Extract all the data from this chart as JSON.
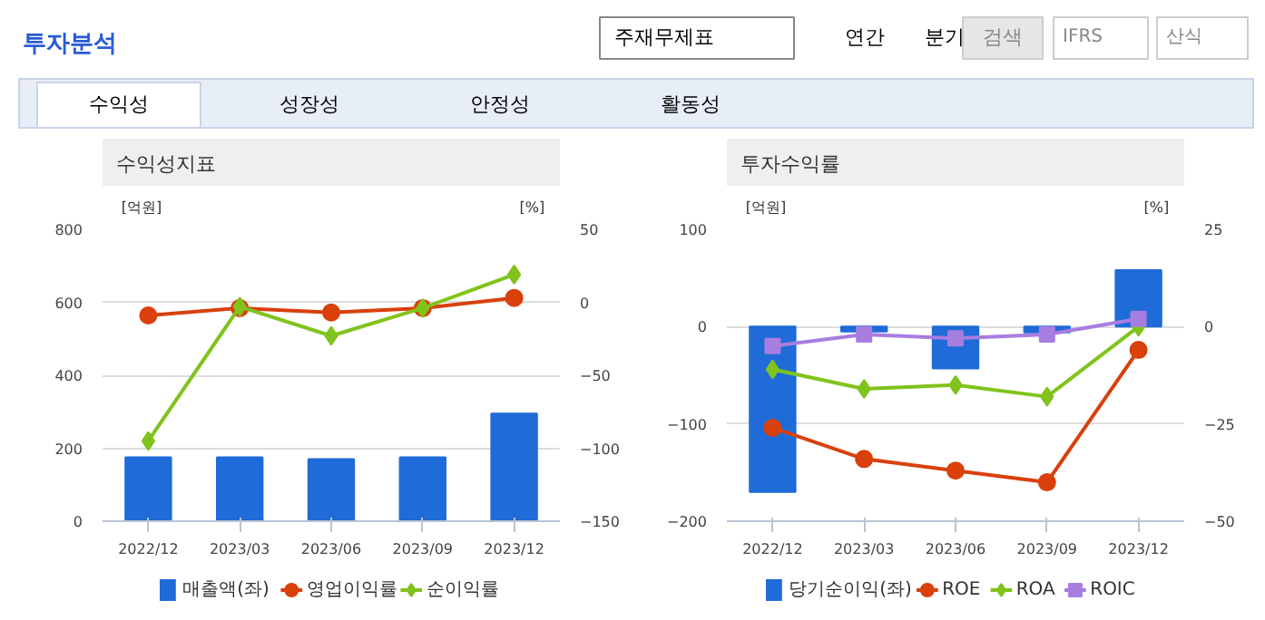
{
  "chart_data": [
    {
      "type": "other",
      "title": "투자분석",
      "annotations": [
        "주재무제표",
        "연간",
        "분기",
        "검색",
        "IFRS",
        "산식",
        "수익성",
        "성장성",
        "안정성",
        "활동성"
      ]
    },
    {
      "type": "bar",
      "title": "수익성지표",
      "ylabel": "[억원]",
      "y2label": "[%]",
      "categories": [
        "2022/12",
        "2023/03",
        "2023/06",
        "2023/09",
        "2023/12"
      ],
      "series": [
        {
          "name": "매출액(좌)",
          "type": "bar",
          "color": "#1f6bd8",
          "values": [
            175,
            175,
            170,
            175,
            295
          ]
        },
        {
          "name": "영업이익률",
          "type": "line",
          "axis": "y2",
          "color": "#d9400b",
          "marker": "circle",
          "values": [
            -9,
            -4,
            -7,
            -4,
            3
          ]
        },
        {
          "name": "순이익률",
          "type": "line",
          "axis": "y2",
          "color": "#80c31c",
          "marker": "diamond",
          "values": [
            -95,
            -3,
            -23,
            -4,
            19
          ]
        }
      ],
      "ylim": [
        0,
        800
      ],
      "yticks": [
        0,
        200,
        400,
        600,
        800
      ],
      "y2lim": [
        -150,
        50
      ],
      "y2ticks": [
        -150,
        -100,
        -50,
        0,
        50
      ],
      "grid": "y",
      "legend": "bottom"
    },
    {
      "type": "bar",
      "title": "투자수익률",
      "ylabel": "[억원]",
      "y2label": "[%]",
      "categories": [
        "2022/12",
        "2023/03",
        "2023/06",
        "2023/09",
        "2023/12"
      ],
      "series": [
        {
          "name": "당기순이익(좌)",
          "type": "bar",
          "color": "#1f6bd8",
          "values": [
            -170,
            -5,
            -43,
            -6,
            58
          ]
        },
        {
          "name": "ROE",
          "type": "line",
          "axis": "y2",
          "color": "#d9400b",
          "marker": "circle",
          "values": [
            -26,
            -34,
            -37,
            -40,
            -6
          ]
        },
        {
          "name": "ROA",
          "type": "line",
          "axis": "y2",
          "color": "#80c31c",
          "marker": "diamond",
          "values": [
            -11,
            -16,
            -15,
            -18,
            0
          ]
        },
        {
          "name": "ROIC",
          "type": "line",
          "axis": "y2",
          "color": "#a77de0",
          "marker": "square",
          "values": [
            -5,
            -2,
            -3,
            -2,
            2
          ]
        }
      ],
      "ylim": [
        -200,
        100
      ],
      "yticks": [
        -200,
        -100,
        0,
        100
      ],
      "y2lim": [
        -50,
        25
      ],
      "y2ticks": [
        -50,
        -25,
        0,
        25
      ],
      "grid": "y",
      "legend": "bottom"
    }
  ]
}
